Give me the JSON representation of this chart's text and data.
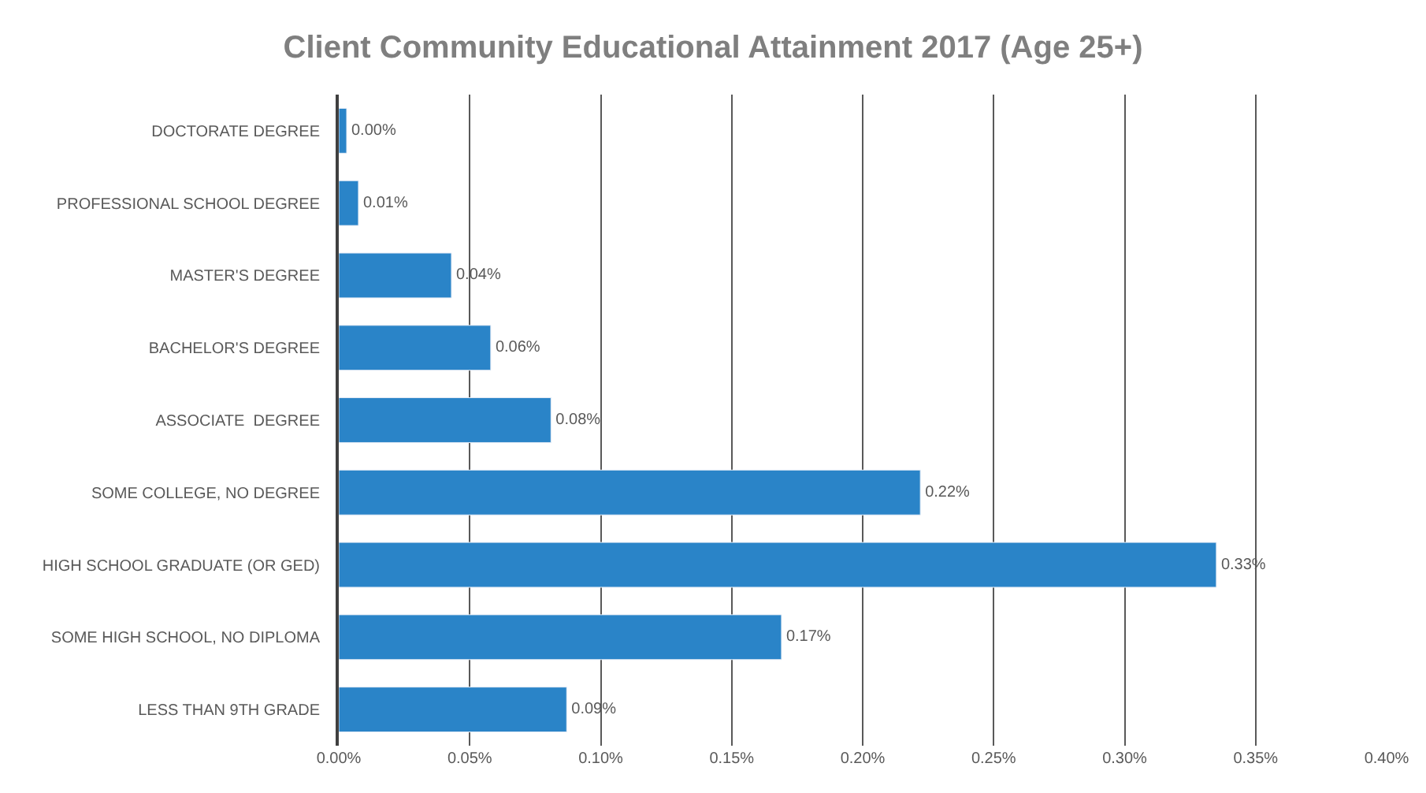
{
  "chart_data": {
    "type": "bar",
    "orientation": "horizontal",
    "title": "Client Community Educational Attainment 2017 (Age 25+)",
    "categories": [
      "DOCTORATE DEGREE",
      "PROFESSIONAL SCHOOL DEGREE",
      "MASTER'S DEGREE",
      "BACHELOR'S DEGREE",
      "ASSOCIATE  DEGREE",
      "SOME COLLEGE, NO DEGREE",
      "HIGH SCHOOL GRADUATE (OR GED)",
      "SOME HIGH SCHOOL, NO DIPLOMA",
      "LESS THAN 9TH GRADE"
    ],
    "values": [
      0.003,
      0.0075,
      0.043,
      0.058,
      0.081,
      0.222,
      0.335,
      0.169,
      0.087
    ],
    "value_labels": [
      "0.00%",
      "0.01%",
      "0.04%",
      "0.06%",
      "0.08%",
      "0.22%",
      "0.33%",
      "0.17%",
      "0.09%"
    ],
    "color": "#2a84c8",
    "xlim": [
      0,
      0.4
    ],
    "xticks": [
      {
        "value": 0,
        "label": "0.00%"
      },
      {
        "value": 0.05,
        "label": "0.05%"
      },
      {
        "value": 0.1,
        "label": "0.10%"
      },
      {
        "value": 0.15,
        "label": "0.15%"
      },
      {
        "value": 0.2,
        "label": "0.20%"
      },
      {
        "value": 0.25,
        "label": "0.25%"
      },
      {
        "value": 0.3,
        "label": "0.30%"
      },
      {
        "value": 0.35,
        "label": "0.35%"
      },
      {
        "value": 0.4,
        "label": "0.40%"
      }
    ],
    "grid": "x",
    "legend": false
  }
}
